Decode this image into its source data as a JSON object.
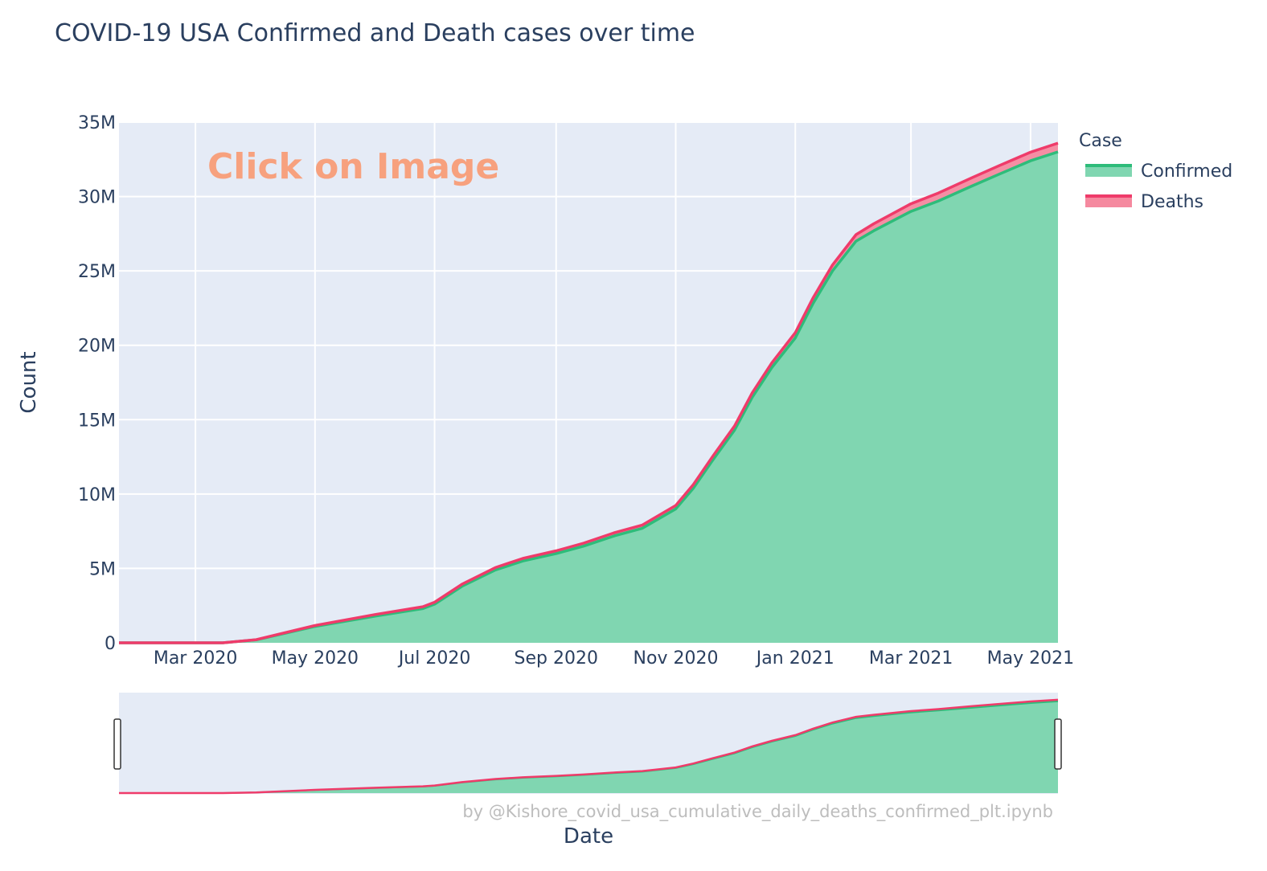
{
  "chart_data": {
    "type": "area",
    "title": "COVID-19 USA Confirmed and Death cases over time",
    "xlabel": "Date",
    "ylabel": "Count",
    "xlim": [
      "2020-01-22",
      "2021-05-15"
    ],
    "ylim": [
      0,
      35000000
    ],
    "x_ticks": [
      {
        "label": "Mar 2020",
        "date": "2020-03-01"
      },
      {
        "label": "May 2020",
        "date": "2020-05-01"
      },
      {
        "label": "Jul 2020",
        "date": "2020-07-01"
      },
      {
        "label": "Sep 2020",
        "date": "2020-09-01"
      },
      {
        "label": "Nov 2020",
        "date": "2020-11-01"
      },
      {
        "label": "Jan 2021",
        "date": "2021-01-01"
      },
      {
        "label": "Mar 2021",
        "date": "2021-03-01"
      },
      {
        "label": "May 2021",
        "date": "2021-05-01"
      }
    ],
    "y_ticks": [
      {
        "label": "0",
        "value": 0
      },
      {
        "label": "5M",
        "value": 5000000
      },
      {
        "label": "10M",
        "value": 10000000
      },
      {
        "label": "15M",
        "value": 15000000
      },
      {
        "label": "20M",
        "value": 20000000
      },
      {
        "label": "25M",
        "value": 25000000
      },
      {
        "label": "30M",
        "value": 30000000
      },
      {
        "label": "35M",
        "value": 35000000
      }
    ],
    "legend": {
      "title": "Case",
      "placement": "top-right"
    },
    "stacked": true,
    "grid": true,
    "rangeslider": true,
    "x": [
      "2020-01-22",
      "2020-03-15",
      "2020-04-01",
      "2020-05-01",
      "2020-06-01",
      "2020-06-25",
      "2020-07-01",
      "2020-07-15",
      "2020-08-01",
      "2020-08-15",
      "2020-09-01",
      "2020-09-15",
      "2020-10-01",
      "2020-10-15",
      "2020-11-01",
      "2020-11-10",
      "2020-11-20",
      "2020-12-01",
      "2020-12-10",
      "2020-12-20",
      "2021-01-01",
      "2021-01-10",
      "2021-01-20",
      "2021-02-01",
      "2021-02-10",
      "2021-03-01",
      "2021-03-15",
      "2021-04-01",
      "2021-04-15",
      "2021-05-01",
      "2021-05-15"
    ],
    "series": [
      {
        "name": "Confirmed",
        "color": "#2ebc7a",
        "values": [
          0,
          0,
          200000,
          1100000,
          1800000,
          2300000,
          2600000,
          3800000,
          4900000,
          5500000,
          6000000,
          6500000,
          7200000,
          7700000,
          9000000,
          10400000,
          12300000,
          14300000,
          16500000,
          18500000,
          20500000,
          22800000,
          25000000,
          27000000,
          27700000,
          29000000,
          29700000,
          30700000,
          31500000,
          32400000,
          33000000
        ]
      },
      {
        "name": "Deaths",
        "color": "#ef3b6a",
        "values": [
          0,
          0,
          8000,
          60000,
          105000,
          125000,
          128000,
          138000,
          155000,
          170000,
          185000,
          196000,
          208000,
          218000,
          232000,
          240000,
          255000,
          270000,
          290000,
          315000,
          350000,
          370000,
          400000,
          440000,
          470000,
          515000,
          535000,
          555000,
          570000,
          580000,
          590000
        ]
      }
    ],
    "annotation": "Click on Image",
    "footnote": "by @Kishore_covid_usa_cumulative_daily_deaths_confirmed_plt.ipynb"
  }
}
